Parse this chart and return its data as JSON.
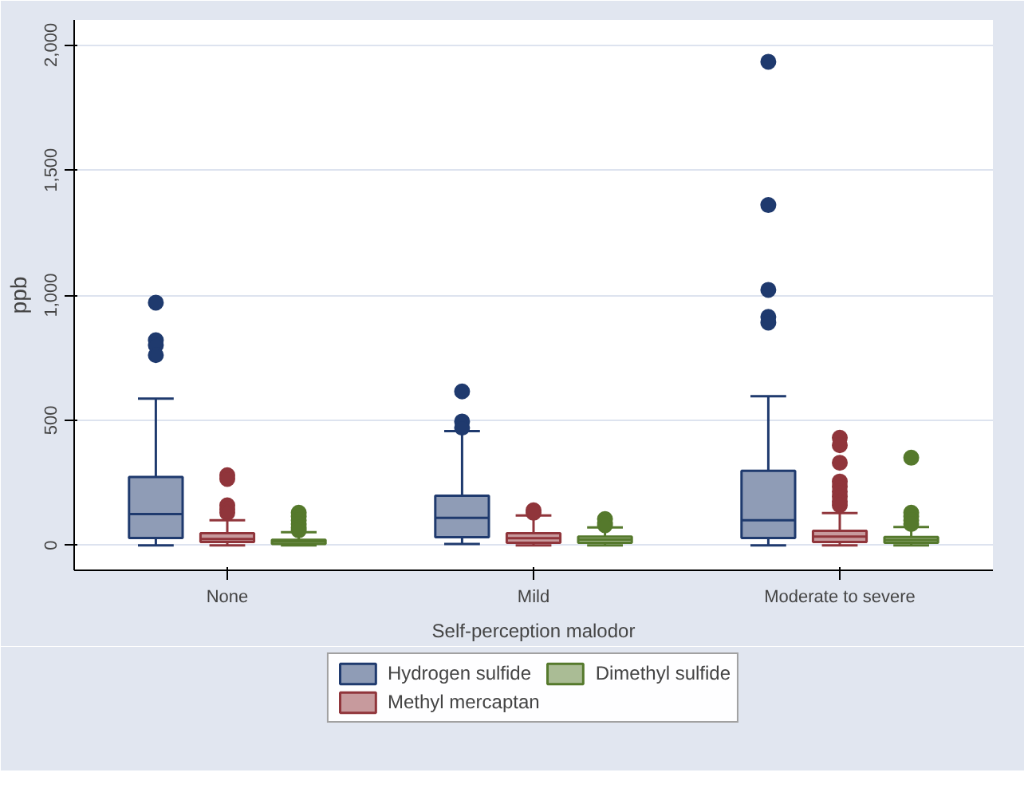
{
  "chart_data": {
    "type": "box",
    "xlabel": "Self-perception malodor",
    "ylabel": "ppb",
    "categories": [
      "None",
      "Mild",
      "Moderate to severe"
    ],
    "ylim": [
      -100,
      2100
    ],
    "yticks": [
      0,
      500,
      {
        "value": 1000,
        "label": "1,000"
      },
      {
        "value": 1500,
        "label": "1,500"
      },
      {
        "value": 2000,
        "label": "2,000"
      }
    ],
    "grid": "y",
    "legend": "bottom",
    "series": [
      {
        "name": "Hydrogen sulfide",
        "color": "#1f3a6e",
        "boxes": [
          {
            "low": 0,
            "q1": 29,
            "median": 125,
            "q3": 273,
            "high": 586,
            "outliers": [
              970,
              820,
              800,
              760
            ]
          },
          {
            "low": 5,
            "q1": 32,
            "median": 110,
            "q3": 198,
            "high": 456,
            "outliers": [
              615,
              495,
              470
            ]
          },
          {
            "low": 0,
            "q1": 29,
            "median": 100,
            "q3": 298,
            "high": 596,
            "outliers": [
              1933,
              1360,
              1021,
              913,
              890
            ]
          }
        ]
      },
      {
        "name": "Methyl mercaptan",
        "color": "#90353b",
        "boxes": [
          {
            "low": 0,
            "q1": 13,
            "median": 25,
            "q3": 48,
            "high": 100,
            "outliers": [
              280,
              265,
              160,
              145,
              130
            ]
          },
          {
            "low": 0,
            "q1": 10,
            "median": 28,
            "q3": 48,
            "high": 119,
            "outliers": [
              140,
              130
            ]
          },
          {
            "low": 0,
            "q1": 13,
            "median": 35,
            "q3": 58,
            "high": 129,
            "outliers": [
              430,
              400,
              330,
              255,
              235,
              215,
              195,
              175,
              160
            ]
          }
        ]
      },
      {
        "name": "Dimethyl sulfide",
        "color": "#55792c",
        "boxes": [
          {
            "low": 0,
            "q1": 5,
            "median": 15,
            "q3": 22,
            "high": 52,
            "outliers": [
              130,
              115,
              100,
              85,
              70,
              60
            ]
          },
          {
            "low": 0,
            "q1": 10,
            "median": 23,
            "q3": 35,
            "high": 71,
            "outliers": [
              105,
              90,
              80
            ]
          },
          {
            "low": 0,
            "q1": 10,
            "median": 21,
            "q3": 33,
            "high": 73,
            "outliers": [
              350,
              130,
              115,
              100,
              85
            ]
          }
        ]
      }
    ]
  }
}
